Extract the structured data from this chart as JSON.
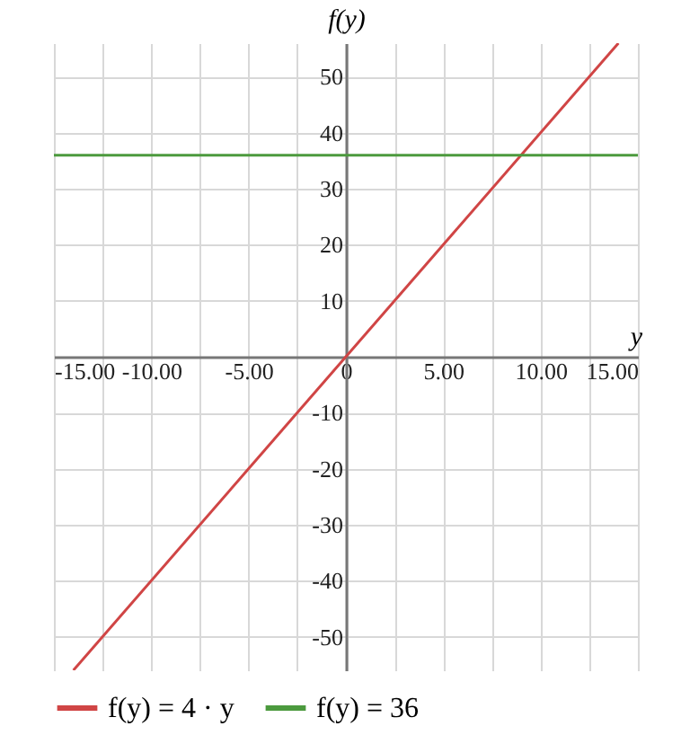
{
  "chart_data": {
    "type": "line",
    "xlabel": "y",
    "ylabel": "f(y)",
    "xlim": [
      -15,
      15
    ],
    "ylim": [
      -56,
      56
    ],
    "xticks": [
      {
        "value": -15,
        "label": "-15.00"
      },
      {
        "value": -12.5,
        "label": null
      },
      {
        "value": -10,
        "label": "-10.00"
      },
      {
        "value": -7.5,
        "label": null
      },
      {
        "value": -5,
        "label": "-5.00"
      },
      {
        "value": -2.5,
        "label": null
      },
      0,
      {
        "value": 2.5,
        "label": null
      },
      {
        "value": 5,
        "label": "5.00"
      },
      {
        "value": 7.5,
        "label": null
      },
      {
        "value": 10,
        "label": "10.00"
      },
      {
        "value": 12.5,
        "label": null
      },
      {
        "value": 15,
        "label": "15.00"
      }
    ],
    "yticks": [
      -50,
      -40,
      -30,
      -20,
      -10,
      10,
      20,
      30,
      40,
      50
    ],
    "grid": true,
    "legend": "bottom",
    "marker": "none",
    "line_style": "solid",
    "series": [
      {
        "name": "f(y) = 4 · y",
        "color": "#d04545",
        "x": [
          -14,
          14
        ],
        "values": [
          -56,
          56
        ]
      },
      {
        "name": "f(y) = 36",
        "color": "#4c9a3e",
        "x": [
          -15,
          15
        ],
        "values": [
          36,
          36
        ]
      }
    ]
  }
}
